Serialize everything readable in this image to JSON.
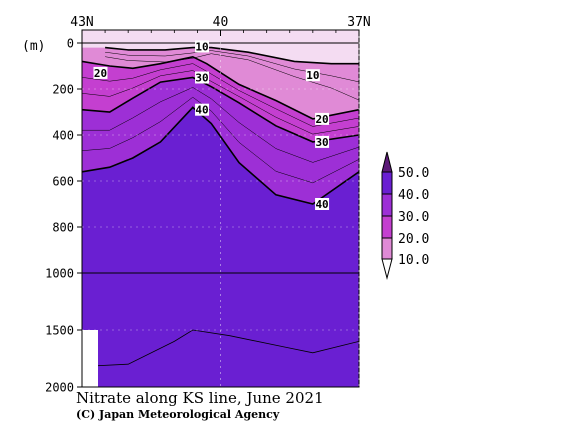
{
  "chart_data": {
    "type": "contour",
    "title": "Nitrate along KS line, June 2021",
    "credit": "(C) Japan Meteorological Agency",
    "x_ticks": [
      "43N",
      "40",
      "37N"
    ],
    "x_tick_values": [
      43,
      40,
      37
    ],
    "xlim": [
      43,
      37
    ],
    "ylabel": "(m)",
    "y_ticks": [
      "0",
      "200",
      "400",
      "600",
      "800",
      "1000",
      "1500",
      "2000"
    ],
    "y_tick_values": [
      0,
      200,
      400,
      600,
      800,
      1000,
      1500,
      2000
    ],
    "ylim": [
      0,
      2000
    ],
    "y_break": 1000,
    "colorbar": {
      "labels": [
        "50.0",
        "40.0",
        "30.0",
        "20.0",
        "10.0"
      ],
      "levels": [
        50,
        40,
        30,
        20,
        10
      ],
      "colors": {
        "above_50": "#5c1a78",
        "40_50": "#6a1fd2",
        "30_40": "#9d2fd6",
        "20_30": "#c43fd0",
        "10_20": "#e08ad6",
        "below_10": "#ffffff"
      }
    },
    "contour_labels": [
      {
        "text": "10",
        "lat": 40.4,
        "depth": 15
      },
      {
        "text": "10",
        "lat": 38.0,
        "depth": 140
      },
      {
        "text": "20",
        "lat": 42.6,
        "depth": 130
      },
      {
        "text": "20",
        "lat": 37.8,
        "depth": 330
      },
      {
        "text": "30",
        "lat": 40.4,
        "depth": 150
      },
      {
        "text": "30",
        "lat": 37.8,
        "depth": 430
      },
      {
        "text": "40",
        "lat": 40.4,
        "depth": 290
      },
      {
        "text": "40",
        "lat": 37.8,
        "depth": 700
      }
    ],
    "contours": {
      "c10": [
        [
          42.5,
          20
        ],
        [
          42.0,
          30
        ],
        [
          41.2,
          30
        ],
        [
          40.6,
          20
        ],
        [
          40.2,
          20
        ],
        [
          39.4,
          40
        ],
        [
          38.4,
          80
        ],
        [
          37.6,
          90
        ],
        [
          37.0,
          90
        ]
      ],
      "c20": [
        [
          43.0,
          80
        ],
        [
          42.4,
          100
        ],
        [
          41.9,
          110
        ],
        [
          41.3,
          90
        ],
        [
          40.6,
          60
        ],
        [
          40.3,
          90
        ],
        [
          39.6,
          180
        ],
        [
          38.8,
          250
        ],
        [
          38.0,
          330
        ],
        [
          37.0,
          290
        ]
      ],
      "c30": [
        [
          43.0,
          290
        ],
        [
          42.4,
          300
        ],
        [
          41.9,
          240
        ],
        [
          41.3,
          170
        ],
        [
          40.6,
          150
        ],
        [
          40.2,
          190
        ],
        [
          39.6,
          260
        ],
        [
          38.8,
          360
        ],
        [
          38.0,
          430
        ],
        [
          37.0,
          400
        ]
      ],
      "c40": [
        [
          43.0,
          560
        ],
        [
          42.4,
          540
        ],
        [
          41.9,
          500
        ],
        [
          41.3,
          430
        ],
        [
          40.6,
          280
        ],
        [
          40.2,
          350
        ],
        [
          39.6,
          520
        ],
        [
          38.8,
          660
        ],
        [
          38.0,
          700
        ],
        [
          37.0,
          560
        ]
      ],
      "c40_bottom": [
        [
          43.0,
          1820
        ],
        [
          42.0,
          1800
        ],
        [
          41.0,
          1600
        ],
        [
          40.6,
          1500
        ],
        [
          39.8,
          1550
        ],
        [
          38.6,
          1650
        ],
        [
          38.0,
          1700
        ],
        [
          37.0,
          1600
        ]
      ]
    }
  }
}
